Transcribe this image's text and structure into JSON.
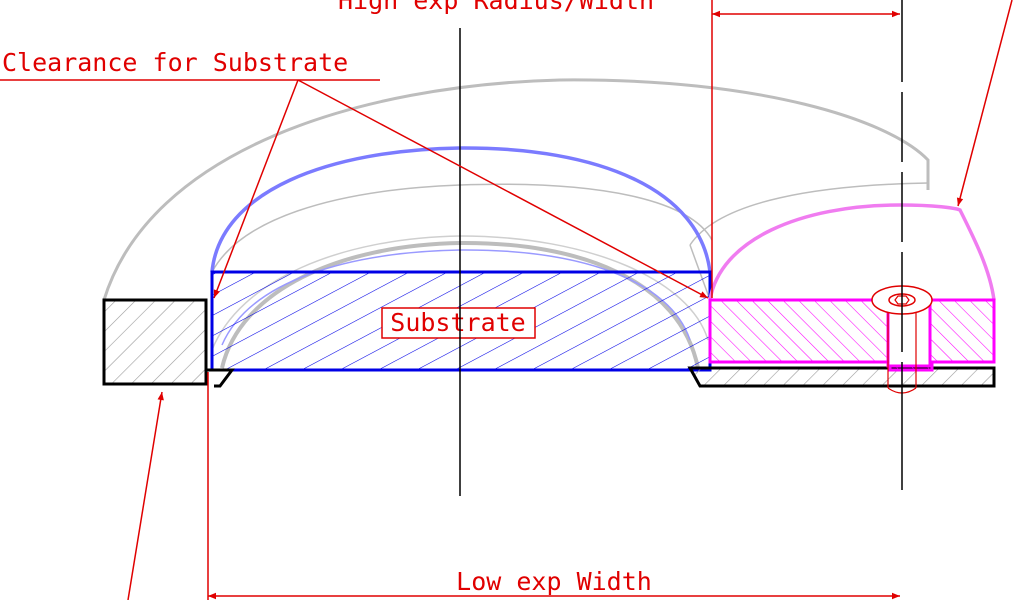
{
  "labels": {
    "clearance": "Clearance for Substrate",
    "substrate": "Substrate",
    "high_exp": "High exp Radius/Width",
    "low_exp": "Low exp Width"
  },
  "colors": {
    "annotation": "#e00000",
    "substrate_outline": "#0000e6",
    "substrate_arc": "#7b7bff",
    "high_exp_part": "#ff00ff",
    "high_exp_arc": "#f07cf0",
    "base_part": "#000000",
    "ghost": "#bdbdbd",
    "centerline": "#000000"
  },
  "icons": {
    "screw": "countersunk-screw-icon",
    "arrowhead": "arrowhead-icon"
  }
}
